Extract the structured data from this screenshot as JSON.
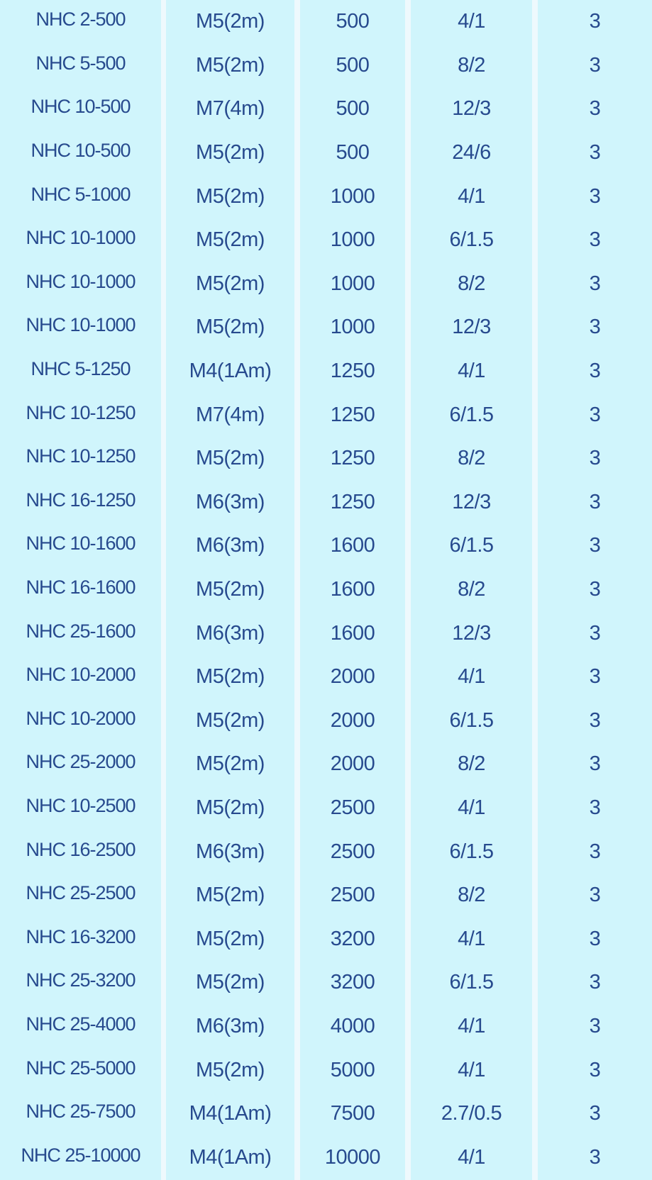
{
  "table": {
    "rows": [
      [
        "NHC 2-500",
        "M5(2m)",
        "500",
        "4/1",
        "3"
      ],
      [
        "NHC 5-500",
        "M5(2m)",
        "500",
        "8/2",
        "3"
      ],
      [
        "NHC 10-500",
        "M7(4m)",
        "500",
        "12/3",
        "3"
      ],
      [
        "NHC 10-500",
        "M5(2m)",
        "500",
        "24/6",
        "3"
      ],
      [
        "NHC 5-1000",
        "M5(2m)",
        "1000",
        "4/1",
        "3"
      ],
      [
        "NHC 10-1000",
        "M5(2m)",
        "1000",
        "6/1.5",
        "3"
      ],
      [
        "NHC 10-1000",
        "M5(2m)",
        "1000",
        "8/2",
        "3"
      ],
      [
        "NHC 10-1000",
        "M5(2m)",
        "1000",
        "12/3",
        "3"
      ],
      [
        "NHC 5-1250",
        "M4(1Am)",
        "1250",
        "4/1",
        "3"
      ],
      [
        "NHC 10-1250",
        "M7(4m)",
        "1250",
        "6/1.5",
        "3"
      ],
      [
        "NHC 10-1250",
        "M5(2m)",
        "1250",
        "8/2",
        "3"
      ],
      [
        "NHC 16-1250",
        "M6(3m)",
        "1250",
        "12/3",
        "3"
      ],
      [
        "NHC 10-1600",
        "M6(3m)",
        "1600",
        "6/1.5",
        "3"
      ],
      [
        "NHC 16-1600",
        "M5(2m)",
        "1600",
        "8/2",
        "3"
      ],
      [
        "NHC 25-1600",
        "M6(3m)",
        "1600",
        "12/3",
        "3"
      ],
      [
        "NHC 10-2000",
        "M5(2m)",
        "2000",
        "4/1",
        "3"
      ],
      [
        "NHC 10-2000",
        "M5(2m)",
        "2000",
        "6/1.5",
        "3"
      ],
      [
        "NHC 25-2000",
        "M5(2m)",
        "2000",
        "8/2",
        "3"
      ],
      [
        "NHC 10-2500",
        "M5(2m)",
        "2500",
        "4/1",
        "3"
      ],
      [
        "NHC 16-2500",
        "M6(3m)",
        "2500",
        "6/1.5",
        "3"
      ],
      [
        "NHC 25-2500",
        "M5(2m)",
        "2500",
        "8/2",
        "3"
      ],
      [
        "NHC 16-3200",
        "M5(2m)",
        "3200",
        "4/1",
        "3"
      ],
      [
        "NHC 25-3200",
        "M5(2m)",
        "3200",
        "6/1.5",
        "3"
      ],
      [
        "NHC 25-4000",
        "M6(3m)",
        "4000",
        "4/1",
        "3"
      ],
      [
        "NHC 25-5000",
        "M5(2m)",
        "5000",
        "4/1",
        "3"
      ],
      [
        "NHC 25-7500",
        "M4(1Am)",
        "7500",
        "2.7/0.5",
        "3"
      ],
      [
        "NHC 25-10000",
        "M4(1Am)",
        "10000",
        "4/1",
        "3"
      ]
    ]
  }
}
